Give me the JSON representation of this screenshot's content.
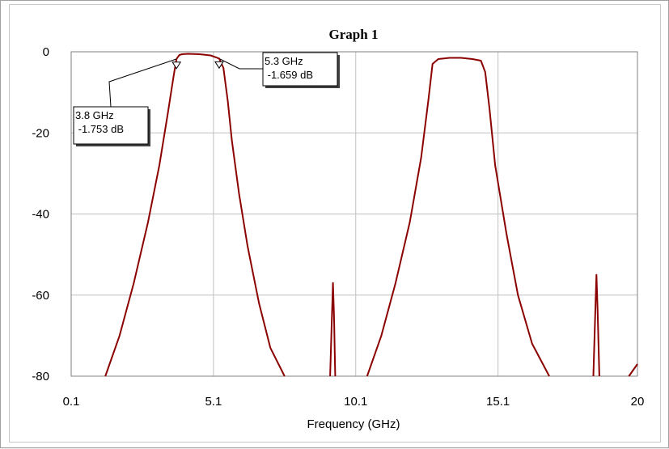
{
  "chart_data": {
    "type": "line",
    "title": "Graph 1",
    "xlabel": "Frequency (GHz)",
    "ylabel": "",
    "xlim": [
      0.1,
      20
    ],
    "ylim": [
      -80,
      0
    ],
    "x_ticks": [
      0.1,
      5.1,
      10.1,
      15.1,
      20
    ],
    "x_tick_labels": [
      "0.1",
      "5.1",
      "10.1",
      "15.1",
      "20"
    ],
    "y_ticks": [
      0,
      -20,
      -40,
      -60,
      -80
    ],
    "y_tick_labels": [
      "0",
      "-20",
      "-40",
      "-60",
      "-80"
    ],
    "grid": true,
    "series": [
      {
        "color": "#8b0000",
        "x": [
          1.3,
          1.8,
          2.3,
          2.8,
          3.2,
          3.5,
          3.7,
          3.8,
          3.9,
          4.0,
          4.2,
          4.6,
          5.0,
          5.3,
          5.45,
          5.6,
          5.75,
          6.0,
          6.3,
          6.7,
          7.1,
          7.6
        ],
        "y": [
          -80,
          -70,
          -57,
          -42,
          -28,
          -15,
          -6,
          -1.753,
          -0.8,
          -0.6,
          -0.5,
          -0.6,
          -0.9,
          -1.659,
          -4,
          -12,
          -22,
          -35,
          -48,
          -62,
          -73,
          -80
        ]
      },
      {
        "color": "#8b0000",
        "x": [
          9.2,
          9.26,
          9.3,
          9.34,
          9.38
        ],
        "y": [
          -80,
          -66,
          -57,
          -66,
          -80
        ]
      },
      {
        "color": "#8b0000",
        "x": [
          10.5,
          11.0,
          11.5,
          12.0,
          12.4,
          12.65,
          12.8,
          13.0,
          13.4,
          13.8,
          14.2,
          14.5,
          14.65,
          14.8,
          15.0,
          15.4,
          15.8,
          16.3,
          16.9
        ],
        "y": [
          -80,
          -70,
          -57,
          -42,
          -26,
          -12,
          -3,
          -1.8,
          -1.5,
          -1.5,
          -1.8,
          -2.2,
          -5,
          -14,
          -28,
          -45,
          -60,
          -72,
          -80
        ]
      },
      {
        "color": "#8b0000",
        "x": [
          18.45,
          18.52,
          18.56,
          18.6,
          18.66
        ],
        "y": [
          -80,
          -64,
          -55,
          -64,
          -80
        ]
      },
      {
        "color": "#8b0000",
        "x": [
          19.7,
          20.0
        ],
        "y": [
          -80,
          -77
        ]
      }
    ],
    "markers": [
      {
        "x": 3.8,
        "y": -1.753,
        "line1": "3.8 GHz",
        "line2": " -1.753 dB"
      },
      {
        "x": 5.3,
        "y": -1.659,
        "line1": "5.3 GHz",
        "line2": " -1.659 dB"
      }
    ]
  }
}
